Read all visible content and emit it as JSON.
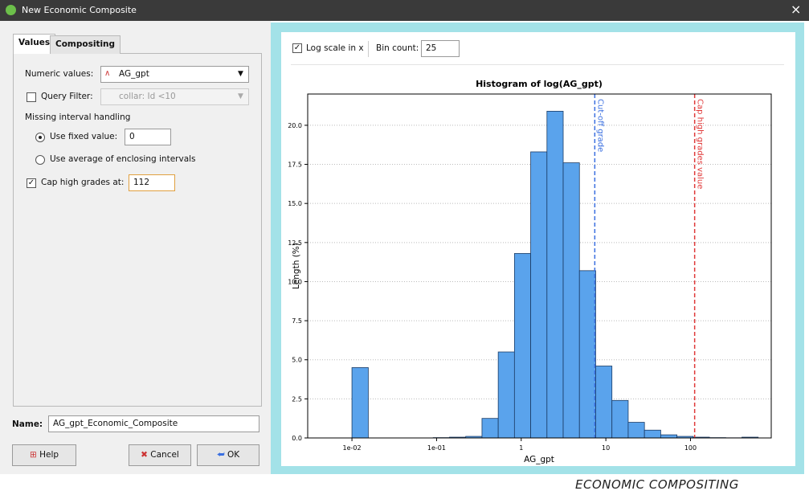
{
  "window": {
    "title": "New Economic Composite",
    "close": "×"
  },
  "tabs": [
    "Values",
    "Compositing"
  ],
  "form": {
    "numeric_label": "Numeric values:",
    "numeric_value": "AG_gpt",
    "query_label": "Query Filter:",
    "query_value": "collar: Id <10",
    "missing_heading": "Missing interval handling",
    "fixed_label": "Use fixed value:",
    "fixed_value": "0",
    "average_label": "Use average of enclosing intervals",
    "cap_label": "Cap high grades at:",
    "cap_value": "112",
    "name_label": "Name:",
    "name_value": "AG_gpt_Economic_Composite"
  },
  "buttons": [
    "Help",
    "Cancel",
    "OK"
  ],
  "toolbar": {
    "log_label": "Log scale in x",
    "bin_label": "Bin count:",
    "bin_value": "25"
  },
  "chart_data": {
    "type": "histogram",
    "title": "Histogram of log(AG_gpt)",
    "x_label": "AG_gpt",
    "y_label": "Length (%)",
    "color": "#5aa3ec",
    "bins": [
      0.01,
      0.0156,
      0.0242,
      0.0377,
      0.0586,
      0.0912,
      0.142,
      0.221,
      0.344,
      0.535,
      0.832,
      1.294,
      2.014,
      3.133,
      4.875,
      7.586,
      11.8,
      18.37,
      28.58,
      44.46,
      69.18,
      107.6,
      167.5,
      260.6,
      405.5,
      631
    ],
    "values": [
      4.5,
      0,
      0,
      0,
      0,
      0.02,
      0.05,
      0.1,
      1.25,
      5.5,
      11.8,
      18.3,
      20.9,
      17.6,
      10.7,
      4.6,
      2.4,
      1.0,
      0.5,
      0.2,
      0.1,
      0.05,
      0.02,
      0.01,
      0.05
    ],
    "xlog": true,
    "xlim": [
      0.003,
      900
    ],
    "ylim": [
      0,
      22
    ],
    "xticks": [
      {
        "value": 0.01,
        "label": "1e-02"
      },
      {
        "value": 0.1,
        "label": "1e-01"
      },
      1,
      10,
      100
    ],
    "yticks": [
      {
        "value": 0,
        "label": "0.0"
      },
      {
        "value": 2.5,
        "label": "2.5"
      },
      {
        "value": 5,
        "label": "5.0"
      },
      {
        "value": 7.5,
        "label": "7.5"
      },
      {
        "value": 10,
        "label": "10.0"
      },
      {
        "value": 12.5,
        "label": "12.5"
      },
      {
        "value": 15,
        "label": "15.0"
      },
      {
        "value": 17.5,
        "label": "17.5"
      },
      {
        "value": 20,
        "label": "20.0"
      }
    ],
    "grid": true,
    "annotations": [
      {
        "label": "Cut-off grade",
        "value": 7.4,
        "color": "#3a6fe0"
      },
      {
        "label": "Cap high grades value",
        "value": 112,
        "color": "#e03a3a"
      }
    ]
  },
  "caption": "ECONOMIC COMPOSITING"
}
